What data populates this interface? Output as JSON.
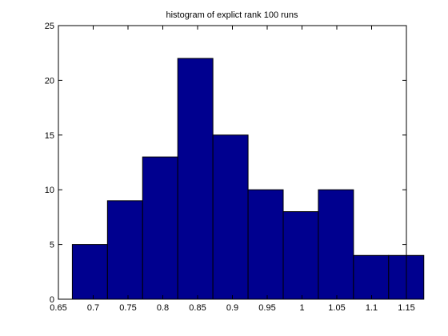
{
  "chart_data": {
    "type": "bar",
    "title": "histogram of explict rank 100 runs",
    "xlabel": "",
    "ylabel": "",
    "xlim": [
      0.65,
      1.15
    ],
    "ylim": [
      0,
      25
    ],
    "bin_width": 0.0505,
    "bins": [
      {
        "x_start": 0.67,
        "x_end": 0.7205,
        "count": 5
      },
      {
        "x_start": 0.7205,
        "x_end": 0.771,
        "count": 9
      },
      {
        "x_start": 0.771,
        "x_end": 0.8215,
        "count": 13
      },
      {
        "x_start": 0.8215,
        "x_end": 0.872,
        "count": 22
      },
      {
        "x_start": 0.872,
        "x_end": 0.9225,
        "count": 15
      },
      {
        "x_start": 0.9225,
        "x_end": 0.973,
        "count": 10
      },
      {
        "x_start": 0.973,
        "x_end": 1.0235,
        "count": 8
      },
      {
        "x_start": 1.0235,
        "x_end": 1.074,
        "count": 10
      },
      {
        "x_start": 1.074,
        "x_end": 1.1245,
        "count": 4
      },
      {
        "x_start": 1.1245,
        "x_end": 1.175,
        "count": 4
      }
    ],
    "x_ticks": [
      {
        "value": 0.65,
        "label": "0.65"
      },
      {
        "value": 0.7,
        "label": "0.7"
      },
      {
        "value": 0.75,
        "label": "0.75"
      },
      {
        "value": 0.8,
        "label": "0.8"
      },
      {
        "value": 0.85,
        "label": "0.85"
      },
      {
        "value": 0.9,
        "label": "0.9"
      },
      {
        "value": 0.95,
        "label": "0.95"
      },
      {
        "value": 1,
        "label": "1"
      },
      {
        "value": 1.05,
        "label": "1.05"
      },
      {
        "value": 1.1,
        "label": "1.1"
      },
      {
        "value": 1.15,
        "label": "1.15"
      }
    ],
    "y_ticks": [
      {
        "value": 0,
        "label": "0"
      },
      {
        "value": 5,
        "label": "5"
      },
      {
        "value": 10,
        "label": "10"
      },
      {
        "value": 15,
        "label": "15"
      },
      {
        "value": 20,
        "label": "20"
      },
      {
        "value": 25,
        "label": "25"
      }
    ],
    "grid": false,
    "bar_color": "#00008f",
    "edge_color": "#000000"
  }
}
